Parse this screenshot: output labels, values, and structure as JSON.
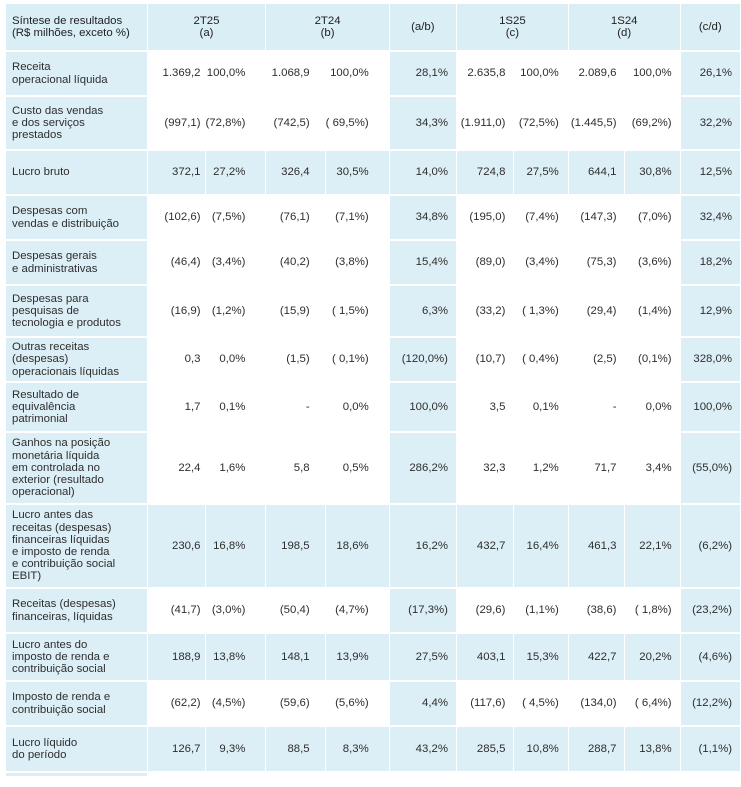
{
  "header": {
    "title_line1": "Síntese de resultados",
    "title_line2": "(R$ milhões, exceto %)",
    "col_2t25": {
      "line1": "2T25",
      "line2": "(a)"
    },
    "col_2t24": {
      "line1": "2T24",
      "line2": "(b)"
    },
    "col_ab": "(a/b)",
    "col_1s25": {
      "line1": "1S25",
      "line2": "(c)"
    },
    "col_1s24": {
      "line1": "1S24",
      "line2": "(d)"
    },
    "col_cd": "(c/d)"
  },
  "rows": [
    {
      "label": [
        "Receita",
        "operacional líquida"
      ],
      "t25": "1.369,2",
      "t25p": "100,0%",
      "t24": "1.068,9",
      "t24p": "100,0%",
      "ab": "28,1%",
      "s25": "2.635,8",
      "s25p": "100,0%",
      "s24": "2.089,6",
      "s24p": "100,0%",
      "cd": "26,1%"
    },
    {
      "label": [
        "Custo das vendas",
        "e dos serviços",
        "prestados"
      ],
      "t25": "(997,1)",
      "t25p": "(72,8%)",
      "t24": "(742,5)",
      "t24p": "( 69,5%)",
      "ab": "34,3%",
      "s25": "(1.911,0)",
      "s25p": "(72,5%)",
      "s24": "(1.445,5)",
      "s24p": "(69,2%)",
      "cd": "32,2%"
    },
    {
      "label": [
        "Lucro bruto"
      ],
      "t25": "372,1",
      "t25p": "27,2%",
      "t24": "326,4",
      "t24p": "30,5%",
      "ab": "14,0%",
      "s25": "724,8",
      "s25p": "27,5%",
      "s24": "644,1",
      "s24p": "30,8%",
      "cd": "12,5%"
    },
    {
      "label": [
        "Despesas  com",
        "vendas  e  distribuição"
      ],
      "t25": "(102,6)",
      "t25p": "(7,5%)",
      "t24": "(76,1)",
      "t24p": "(7,1%)",
      "ab": "34,8%",
      "s25": "(195,0)",
      "s25p": "(7,4%)",
      "s24": "(147,3)",
      "s24p": "(7,0%)",
      "cd": "32,4%"
    },
    {
      "label": [
        "Despesas gerais",
        "e administrativas"
      ],
      "t25": "(46,4)",
      "t25p": "(3,4%)",
      "t24": "(40,2)",
      "t24p": "(3,8%)",
      "ab": "15,4%",
      "s25": "(89,0)",
      "s25p": "(3,4%)",
      "s24": "(75,3)",
      "s24p": "(3,6%)",
      "cd": "18,2%"
    },
    {
      "label": [
        "Despesas para",
        "pesquisas de",
        "tecnologia e produtos"
      ],
      "t25": "(16,9)",
      "t25p": "(1,2%)",
      "t24": "(15,9)",
      "t24p": "( 1,5%)",
      "ab": "6,3%",
      "s25": "(33,2)",
      "s25p": "( 1,3%)",
      "s24": "(29,4)",
      "s24p": "(1,4%)",
      "cd": "12,9%"
    },
    {
      "label": [
        "Outras receitas",
        "(despesas)",
        "operacionais líquidas"
      ],
      "t25": "0,3",
      "t25p": "0,0%",
      "t24": "(1,5)",
      "t24p": "(  0,1%)",
      "ab": "(120,0%)",
      "s25": "(10,7)",
      "s25p": "(  0,4%)",
      "s24": "(2,5)",
      "s24p": "(0,1%)",
      "cd": "328,0%"
    },
    {
      "label": [
        "Resultado de",
        "equivalência",
        "patrimonial"
      ],
      "t25": "1,7",
      "t25p": "0,1%",
      "t24": "-",
      "t24p": "0,0%",
      "ab": "100,0%",
      "s25": "3,5",
      "s25p": "0,1%",
      "s24": "-",
      "s24p": "0,0%",
      "cd": "100,0%"
    },
    {
      "label": [
        "Ganhos na posição",
        "monetária líquida",
        "em controlada no",
        "exterior (resultado",
        "operacional)"
      ],
      "t25": "22,4",
      "t25p": "1,6%",
      "t24": "5,8",
      "t24p": "0,5%",
      "ab": "286,2%",
      "s25": "32,3",
      "s25p": "1,2%",
      "s24": "71,7",
      "s24p": "3,4%",
      "cd": "(55,0%)"
    },
    {
      "label": [
        "Lucro antes das",
        "receitas (despesas)",
        "financeiras líquidas",
        "e imposto de renda",
        "e contribuição social",
        "EBIT)"
      ],
      "t25": "230,6",
      "t25p": "16,8%",
      "t24": "198,5",
      "t24p": "18,6%",
      "ab": "16,2%",
      "s25": "432,7",
      "s25p": "16,4%",
      "s24": "461,3",
      "s24p": "22,1%",
      "cd": "(6,2%)"
    },
    {
      "label": [
        "Receitas (despesas)",
        "financeiras, líquidas"
      ],
      "t25": "(41,7)",
      "t25p": "(3,0%)",
      "t24": "(50,4)",
      "t24p": "(4,7%)",
      "ab": "(17,3%)",
      "s25": "(29,6)",
      "s25p": "(1,1%)",
      "s24": "(38,6)",
      "s24p": "( 1,8%)",
      "cd": "(23,2%)"
    },
    {
      "label": [
        "Lucro antes do",
        "imposto de renda e",
        "contribuição social"
      ],
      "t25": "188,9",
      "t25p": "13,8%",
      "t24": "148,1",
      "t24p": "13,9%",
      "ab": "27,5%",
      "s25": "403,1",
      "s25p": "15,3%",
      "s24": "422,7",
      "s24p": "20,2%",
      "cd": "(4,6%)"
    },
    {
      "label": [
        "Imposto de renda e",
        "contribuição social"
      ],
      "t25": "(62,2)",
      "t25p": "(4,5%)",
      "t24": "(59,6)",
      "t24p": "(5,6%)",
      "ab": "4,4%",
      "s25": "(117,6)",
      "s25p": "(  4,5%)",
      "s24": "(134,0)",
      "s24p": "( 6,4%)",
      "cd": "(12,2%)"
    },
    {
      "label": [
        "Lucro líquido",
        "do período"
      ],
      "t25": "126,7",
      "t25p": "9,3%",
      "t24": "88,5",
      "t24p": "8,3%",
      "ab": "43,2%",
      "s25": "285,5",
      "s25p": "10,8%",
      "s24": "288,7",
      "s24p": "13,8%",
      "cd": "(1,1%)"
    }
  ]
}
